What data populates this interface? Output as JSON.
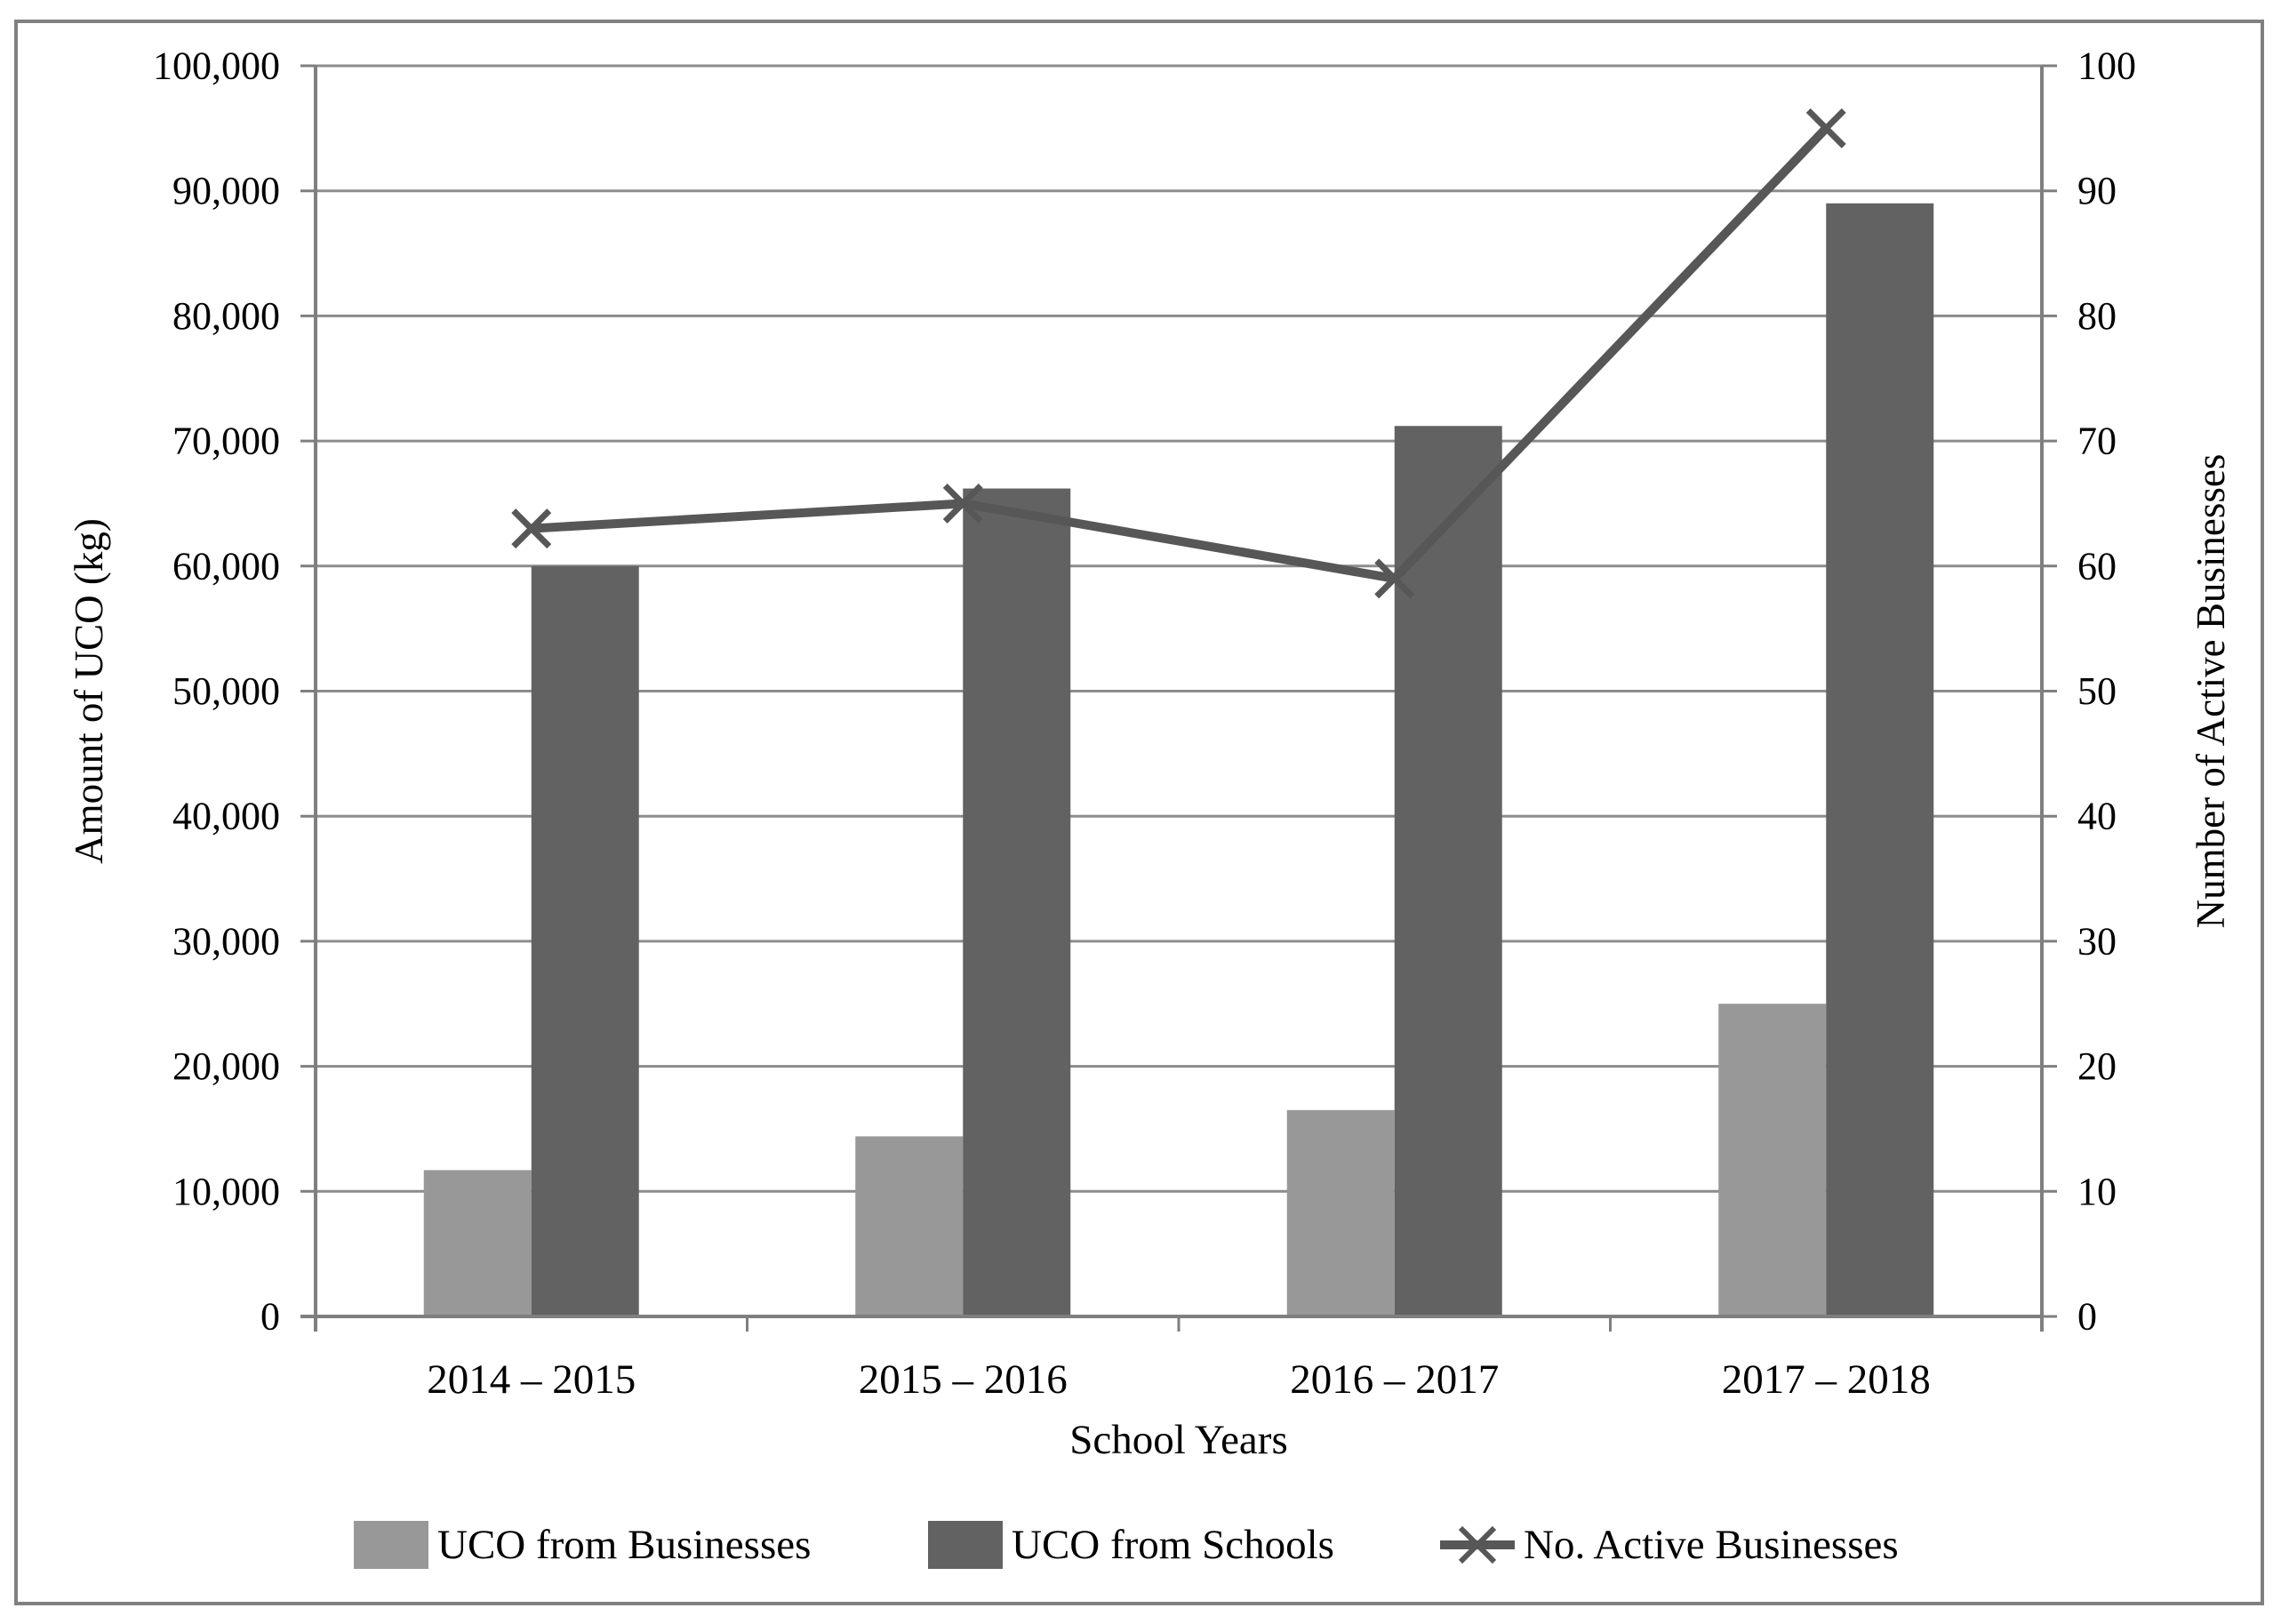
{
  "figure": {
    "background": "#FFFFFF",
    "border_color": "#808080"
  },
  "chart_data": {
    "type": "combo-bar-line",
    "categories": [
      "2014 – 2015",
      "2015 – 2016",
      "2016 – 2017",
      "2017 – 2018"
    ],
    "series": [
      {
        "name": "UCO from Businesses",
        "type": "bar",
        "axis": "left",
        "color": "#989898",
        "values": [
          11700,
          14400,
          16500,
          25000
        ]
      },
      {
        "name": "UCO from Schools",
        "type": "bar",
        "axis": "left",
        "color": "#626262",
        "values": [
          60000,
          66200,
          71200,
          89000
        ]
      },
      {
        "name": "No. Active Businesses",
        "type": "line",
        "axis": "right",
        "color": "#575757",
        "marker": "x",
        "values": [
          63,
          65,
          59,
          95
        ]
      }
    ],
    "x_axis": {
      "title": "School Years"
    },
    "left_axis": {
      "title": "Amount of UCO (kg)",
      "min": 0,
      "max": 100000,
      "step": 10000
    },
    "right_axis": {
      "title": "Number of Active Businesses",
      "min": 0,
      "max": 100,
      "step": 10
    },
    "grid": true,
    "legend_position": "bottom",
    "legend": [
      "UCO from Businesses",
      "UCO from Schools",
      "No. Active Businesses"
    ],
    "gridline_color": "#8C8C8C",
    "axis_color": "#7F7F7F",
    "text_color": "#000000"
  }
}
